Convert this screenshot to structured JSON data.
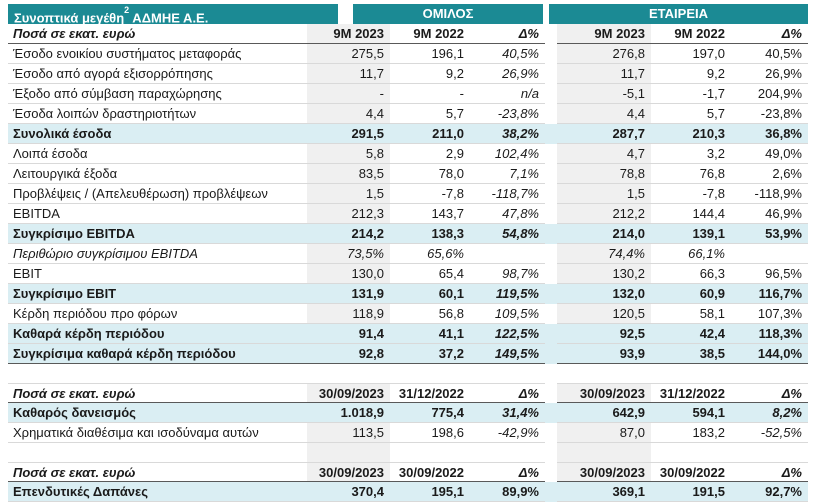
{
  "colors": {
    "teal": "#1b8a94",
    "highlight": "#daeef3",
    "graycol": "#f0f0f0",
    "linelight": "#d9d9d9",
    "linedark": "#595959",
    "textcol": "#1a1a1a"
  },
  "banner": {
    "title_main": "Συνοπτικά μεγέθη",
    "title_sup": "2",
    "title_rest": " ΑΔΜΗΕ Α.Ε.",
    "group_left": "ΟΜΙΛΟΣ",
    "group_right": "ΕΤΑΙΡΕΙΑ"
  },
  "tables": [
    {
      "header": {
        "label": "Ποσά σε εκατ. ευρώ",
        "columns": [
          "9M 2023",
          "9M 2022",
          "Δ%",
          "9M 2023",
          "9M 2022",
          "Δ%"
        ]
      },
      "delta_italic": [
        true,
        false
      ],
      "rows": [
        {
          "label": "Έσοδο ενοικίου συστήματος μεταφοράς",
          "values": [
            "275,5",
            "196,1",
            "40,5%",
            "276,8",
            "197,0",
            "40,5%"
          ],
          "style": "normal"
        },
        {
          "label": "Έσοδο από αγορά εξισορρόπησης",
          "values": [
            "11,7",
            "9,2",
            "26,9%",
            "11,7",
            "9,2",
            "26,9%"
          ],
          "style": "normal"
        },
        {
          "label": "Έξοδο από σύμβαση παραχώρησης",
          "values": [
            "-",
            "-",
            "n/a",
            "-5,1",
            "-1,7",
            "204,9%"
          ],
          "style": "normal"
        },
        {
          "label": "Έσοδα λοιπών δραστηριοτήτων",
          "values": [
            "4,4",
            "5,7",
            "-23,8%",
            "4,4",
            "5,7",
            "-23,8%"
          ],
          "style": "normal"
        },
        {
          "label": "Συνολικά έσοδα",
          "values": [
            "291,5",
            "211,0",
            "38,2%",
            "287,7",
            "210,3",
            "36,8%"
          ],
          "style": "total"
        },
        {
          "label": "Λοιπά έσοδα",
          "values": [
            "5,8",
            "2,9",
            "102,4%",
            "4,7",
            "3,2",
            "49,0%"
          ],
          "style": "normal"
        },
        {
          "label": "Λειτουργικά έξοδα",
          "values": [
            "83,5",
            "78,0",
            "7,1%",
            "78,8",
            "76,8",
            "2,6%"
          ],
          "style": "normal"
        },
        {
          "label": "Προβλέψεις / (Απελευθέρωση) προβλέψεων",
          "values": [
            "1,5",
            "-7,8",
            "-118,7%",
            "1,5",
            "-7,8",
            "-118,9%"
          ],
          "style": "normal"
        },
        {
          "label": "EBITDA",
          "values": [
            "212,3",
            "143,7",
            "47,8%",
            "212,2",
            "144,4",
            "46,9%"
          ],
          "style": "normal"
        },
        {
          "label": "Συγκρίσιμο EBITDA",
          "values": [
            "214,2",
            "138,3",
            "54,8%",
            "214,0",
            "139,1",
            "53,9%"
          ],
          "style": "total"
        },
        {
          "label": "Περιθώριο συγκρίσιμου EBITDA",
          "values": [
            "73,5%",
            "65,6%",
            "",
            "74,4%",
            "66,1%",
            ""
          ],
          "style": "italic"
        },
        {
          "label": "EBIT",
          "values": [
            "130,0",
            "65,4",
            "98,7%",
            "130,2",
            "66,3",
            "96,5%"
          ],
          "style": "normal"
        },
        {
          "label": "Συγκρίσιμο EBIT",
          "values": [
            "131,9",
            "60,1",
            "119,5%",
            "132,0",
            "60,9",
            "116,7%"
          ],
          "style": "total"
        },
        {
          "label": "Κέρδη περιόδου προ φόρων",
          "values": [
            "118,9",
            "56,8",
            "109,5%",
            "120,5",
            "58,1",
            "107,3%"
          ],
          "style": "normal"
        },
        {
          "label": "Καθαρά κέρδη περιόδου",
          "values": [
            "91,4",
            "41,1",
            "122,5%",
            "92,5",
            "42,4",
            "118,3%"
          ],
          "style": "total"
        },
        {
          "label": "Συγκρίσιμα καθαρά κέρδη περιόδου",
          "values": [
            "92,8",
            "37,2",
            "149,5%",
            "93,9",
            "38,5",
            "144,0%"
          ],
          "style": "total"
        }
      ]
    },
    {
      "header": {
        "label": "Ποσά σε εκατ. ευρώ",
        "columns": [
          "30/09/2023",
          "31/12/2022",
          "Δ%",
          "30/09/2023",
          "31/12/2022",
          "Δ%"
        ]
      },
      "delta_italic": [
        true,
        true
      ],
      "rows": [
        {
          "label": "Καθαρός δανεισμός",
          "values": [
            "1.018,9",
            "775,4",
            "31,4%",
            "642,9",
            "594,1",
            "8,2%"
          ],
          "style": "total"
        },
        {
          "label": "Χρηματικά διαθέσιμα και ισοδύναμα αυτών",
          "values": [
            "113,5",
            "198,6",
            "-42,9%",
            "87,0",
            "183,2",
            "-52,5%"
          ],
          "style": "normal"
        }
      ]
    },
    {
      "header": {
        "label": "Ποσά σε εκατ. ευρώ",
        "columns": [
          "30/09/2023",
          "30/09/2022",
          "Δ%",
          "30/09/2023",
          "30/09/2022",
          "Δ%"
        ]
      },
      "delta_italic": [
        false,
        false
      ],
      "rows": [
        {
          "label": "Επενδυτικές Δαπάνες",
          "values": [
            "370,4",
            "195,1",
            "89,9%",
            "369,1",
            "191,5",
            "92,7%"
          ],
          "style": "total"
        }
      ]
    }
  ]
}
